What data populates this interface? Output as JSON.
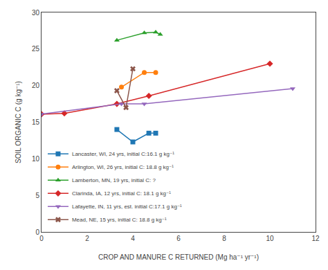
{
  "chart_data": {
    "type": "line",
    "xlabel": "CROP AND MANURE C RETURNED (Mg ha⁻¹ yr⁻¹)",
    "ylabel": "SOIL ORGANIC C (g kg⁻¹)",
    "xlim": [
      0,
      12
    ],
    "ylim": [
      0,
      30
    ],
    "xticks": [
      0,
      2,
      4,
      6,
      8,
      10,
      12
    ],
    "yticks": [
      0,
      5,
      10,
      15,
      20,
      25,
      30
    ],
    "grid": false,
    "legend": "lower left",
    "series": [
      {
        "name": "Lancaster, WI, 24 yrs, initial C:16.1 g kg⁻¹",
        "marker": "square",
        "x": [
          3.3,
          4.0,
          4.7,
          5.0
        ],
        "values": [
          14.0,
          12.3,
          13.5,
          13.5
        ]
      },
      {
        "name": "Arlington, WI, 26 yrs, initial C: 18.8 g kg⁻¹",
        "marker": "circle",
        "x": [
          3.5,
          4.5,
          5.0
        ],
        "values": [
          19.8,
          21.8,
          21.8
        ]
      },
      {
        "name": "Lamberton, MN, 19 yrs, initial C: ?",
        "marker": "triangle-up",
        "x": [
          3.3,
          4.5,
          5.0,
          5.2
        ],
        "values": [
          26.2,
          27.2,
          27.3,
          27.0
        ]
      },
      {
        "name": "Clarinda, IA, 12 yrs, initial C: 18.1 g kg⁻¹",
        "marker": "diamond",
        "x": [
          0,
          1.0,
          3.3,
          4.7,
          10.0
        ],
        "values": [
          16.1,
          16.2,
          17.5,
          18.6,
          23.0
        ]
      },
      {
        "name": "Lafayette, IN, 11 yrs, est. initial C:17.1 g kg⁻¹",
        "marker": "triangle-down",
        "x": [
          0,
          3.5,
          4.5,
          11.0
        ],
        "values": [
          16.1,
          17.5,
          17.5,
          19.6
        ]
      },
      {
        "name": "Mead, NE, 15 yrs, initial C: 18.8 g kg⁻¹",
        "marker": "x",
        "x": [
          3.3,
          3.7,
          4.0
        ],
        "values": [
          19.3,
          17.0,
          22.3
        ]
      }
    ]
  }
}
